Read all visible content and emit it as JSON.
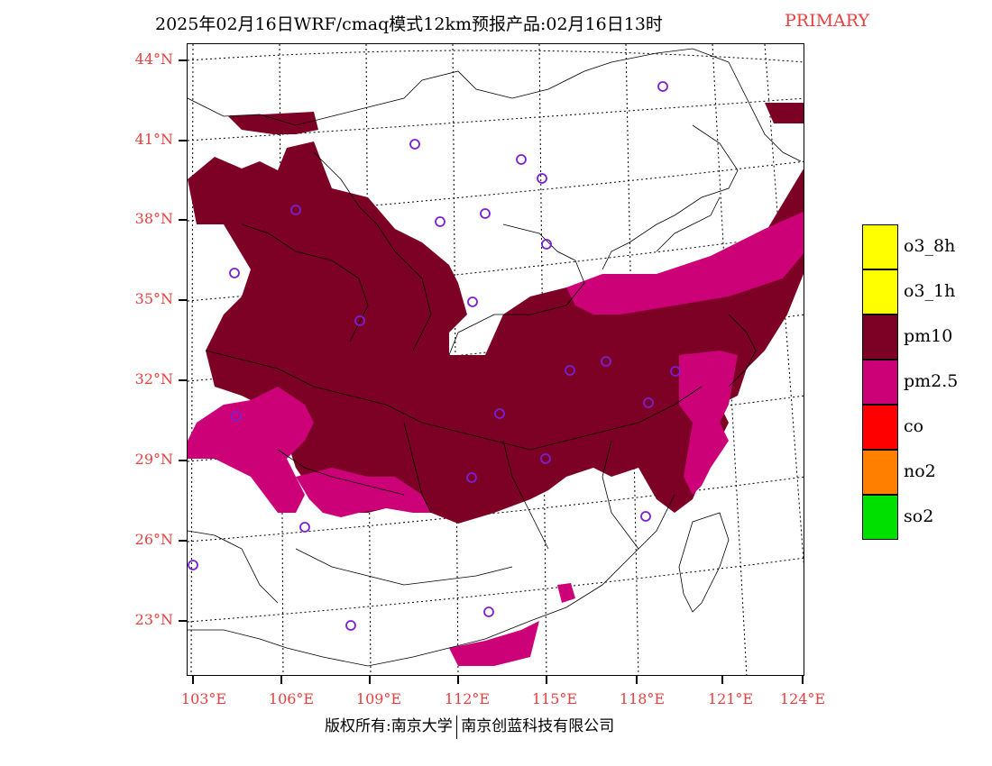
{
  "title": {
    "main": "2025年02月16日WRF/cmaq模式12km预报产品:02月16日13时",
    "tag": "PRIMARY",
    "tag_color": "#e8403f"
  },
  "axes": {
    "latitudes": [
      "44°N",
      "41°N",
      "38°N",
      "35°N",
      "32°N",
      "29°N",
      "26°N",
      "23°N"
    ],
    "longitudes": [
      "103°E",
      "106°E",
      "109°E",
      "112°E",
      "115°E",
      "118°E",
      "121°E",
      "124°E"
    ],
    "label_color": "#e8403f"
  },
  "legend": {
    "items": [
      {
        "label": "o3_8h",
        "color": "#ffff00"
      },
      {
        "label": "o3_1h",
        "color": "#ffff00"
      },
      {
        "label": "pm10",
        "color": "#7d0025"
      },
      {
        "label": "pm2.5",
        "color": "#cc0077"
      },
      {
        "label": "co",
        "color": "#ff0000"
      },
      {
        "label": "no2",
        "color": "#ff7f00"
      },
      {
        "label": "so2",
        "color": "#00e000"
      }
    ]
  },
  "credit": {
    "left": "版权所有:南京大学",
    "right": "南京创蓝科技有限公司"
  },
  "map": {
    "pollutant_colors": {
      "pm10": "#7d0025",
      "pm2.5": "#cc0077"
    },
    "station_marker_color": "#7a1fd6"
  }
}
